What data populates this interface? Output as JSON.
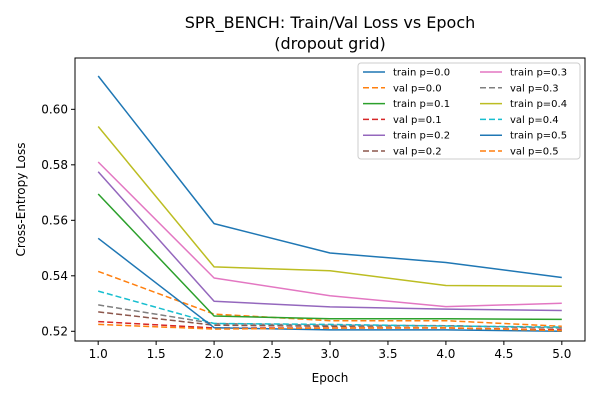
{
  "chart_data": {
    "type": "line",
    "title_lines": [
      "SPR_BENCH: Train/Val Loss vs Epoch",
      "(dropout grid)"
    ],
    "xlabel": "Epoch",
    "ylabel": "Cross-Entropy Loss",
    "xlim": [
      0.8,
      5.2
    ],
    "ylim": [
      0.5165,
      0.6185
    ],
    "x_ticks": [
      1.0,
      1.5,
      2.0,
      2.5,
      3.0,
      3.5,
      4.0,
      4.5,
      5.0
    ],
    "x_tick_labels": [
      "1.0",
      "1.5",
      "2.0",
      "2.5",
      "3.0",
      "3.5",
      "4.0",
      "4.5",
      "5.0"
    ],
    "y_ticks": [
      0.52,
      0.54,
      0.56,
      0.58,
      0.6
    ],
    "y_tick_labels": [
      "0.52",
      "0.54",
      "0.56",
      "0.58",
      "0.60"
    ],
    "grid": false,
    "legend_position": "top-right",
    "legend_columns": 2,
    "x": [
      1,
      2,
      3,
      4,
      5
    ],
    "series": [
      {
        "name": "train p=0.0",
        "color": "#1f77b4",
        "dash": "solid",
        "values": [
          0.612,
          0.5588,
          0.5482,
          0.5448,
          0.5394
        ]
      },
      {
        "name": "val p=0.0",
        "color": "#ff7f0e",
        "dash": "dashed",
        "values": [
          0.5416,
          0.5262,
          0.5238,
          0.5238,
          0.5218
        ]
      },
      {
        "name": "train p=0.1",
        "color": "#2ca02c",
        "dash": "solid",
        "values": [
          0.5695,
          0.5255,
          0.5245,
          0.5245,
          0.5243
        ]
      },
      {
        "name": "val p=0.1",
        "color": "#d62728",
        "dash": "dashed",
        "values": [
          0.5235,
          0.5212,
          0.5212,
          0.5212,
          0.5205
        ]
      },
      {
        "name": "train p=0.2",
        "color": "#9467bd",
        "dash": "solid",
        "values": [
          0.5775,
          0.5308,
          0.5288,
          0.528,
          0.5275
        ]
      },
      {
        "name": "val p=0.2",
        "color": "#8c564b",
        "dash": "dashed",
        "values": [
          0.527,
          0.5222,
          0.5218,
          0.522,
          0.5212
        ]
      },
      {
        "name": "train p=0.3",
        "color": "#e377c2",
        "dash": "solid",
        "values": [
          0.581,
          0.5392,
          0.5328,
          0.5289,
          0.5301
        ]
      },
      {
        "name": "val p=0.3",
        "color": "#7f7f7f",
        "dash": "dashed",
        "values": [
          0.5295,
          0.5228,
          0.5222,
          0.522,
          0.5212
        ]
      },
      {
        "name": "train p=0.4",
        "color": "#bcbd22",
        "dash": "solid",
        "values": [
          0.5938,
          0.5432,
          0.5418,
          0.5365,
          0.5362
        ]
      },
      {
        "name": "val p=0.4",
        "color": "#17becf",
        "dash": "dashed",
        "values": [
          0.5345,
          0.5228,
          0.5225,
          0.5219,
          0.5215
        ]
      },
      {
        "name": "train p=0.5",
        "color": "#1f77b4",
        "dash": "solid",
        "values": [
          0.5535,
          0.5213,
          0.5205,
          0.5205,
          0.52
        ]
      },
      {
        "name": "val p=0.5",
        "color": "#ff7f0e",
        "dash": "dashed",
        "values": [
          0.5225,
          0.5208,
          0.5212,
          0.5213,
          0.5202
        ]
      }
    ]
  }
}
